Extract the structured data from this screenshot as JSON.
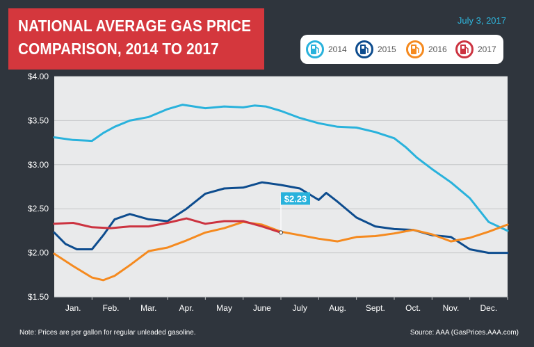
{
  "title": {
    "line1": "NATIONAL AVERAGE GAS PRICE",
    "line2": "COMPARISON, 2014 TO 2017"
  },
  "date": "July 3, 2017",
  "legend": [
    {
      "label": "2014",
      "color": "#29b2dc",
      "icon": "gas-pump-icon"
    },
    {
      "label": "2015",
      "color": "#0d4c8e",
      "icon": "gas-pump-icon"
    },
    {
      "label": "2016",
      "color": "#f58a1f",
      "icon": "gas-pump-icon"
    },
    {
      "label": "2017",
      "color": "#cc3340",
      "icon": "gas-pump-icon"
    }
  ],
  "footer": {
    "note": "Note: Prices are per gallon for regular unleaded gasoline.",
    "source": "Source: AAA (GasPrices.AAA.com)"
  },
  "chart_data": {
    "type": "line",
    "y_ticks": [
      "$4.00",
      "$3.50",
      "$3.00",
      "$2.50",
      "$2.00",
      "$1.50"
    ],
    "ylim": [
      1.5,
      4.0
    ],
    "xlim": [
      0,
      12
    ],
    "categories": [
      "Jan.",
      "Feb.",
      "Mar.",
      "Apr.",
      "May",
      "June",
      "July",
      "Aug.",
      "Sept.",
      "Oct.",
      "Nov.",
      "Dec."
    ],
    "grid": "horizontal",
    "annotation": {
      "label": "$2.23",
      "x": 6.0,
      "y": 2.23
    },
    "series": [
      {
        "name": "2014",
        "color": "#29b2dc",
        "x": [
          0,
          0.5,
          1.0,
          1.3,
          1.6,
          2.0,
          2.5,
          3.0,
          3.4,
          4.0,
          4.5,
          5.0,
          5.3,
          5.6,
          6.0,
          6.5,
          7.0,
          7.5,
          8.0,
          8.5,
          9.0,
          9.3,
          9.6,
          10.0,
          10.5,
          11.0,
          11.5,
          12.0
        ],
        "y": [
          3.31,
          3.28,
          3.27,
          3.36,
          3.43,
          3.5,
          3.54,
          3.63,
          3.68,
          3.64,
          3.66,
          3.65,
          3.67,
          3.66,
          3.61,
          3.53,
          3.47,
          3.43,
          3.42,
          3.37,
          3.3,
          3.2,
          3.08,
          2.95,
          2.8,
          2.62,
          2.35,
          2.25
        ]
      },
      {
        "name": "2015",
        "color": "#0d4c8e",
        "x": [
          0,
          0.3,
          0.6,
          1.0,
          1.3,
          1.6,
          2.0,
          2.5,
          3.0,
          3.5,
          4.0,
          4.5,
          5.0,
          5.5,
          6.0,
          6.5,
          7.0,
          7.2,
          7.5,
          8.0,
          8.5,
          9.0,
          9.5,
          10.0,
          10.5,
          11.0,
          11.5,
          12.0
        ],
        "y": [
          2.23,
          2.1,
          2.04,
          2.04,
          2.2,
          2.38,
          2.44,
          2.38,
          2.36,
          2.5,
          2.67,
          2.73,
          2.74,
          2.8,
          2.77,
          2.73,
          2.6,
          2.68,
          2.58,
          2.4,
          2.3,
          2.27,
          2.26,
          2.2,
          2.18,
          2.04,
          2.0,
          2.0
        ]
      },
      {
        "name": "2016",
        "color": "#f58a1f",
        "x": [
          0,
          0.5,
          1.0,
          1.3,
          1.6,
          2.0,
          2.5,
          3.0,
          3.5,
          4.0,
          4.5,
          5.0,
          5.5,
          6.0,
          6.5,
          7.0,
          7.5,
          8.0,
          8.5,
          9.0,
          9.5,
          10.0,
          10.5,
          11.0,
          11.5,
          12.0
        ],
        "y": [
          1.99,
          1.85,
          1.72,
          1.69,
          1.74,
          1.86,
          2.02,
          2.06,
          2.14,
          2.23,
          2.28,
          2.35,
          2.32,
          2.24,
          2.2,
          2.16,
          2.13,
          2.18,
          2.19,
          2.22,
          2.26,
          2.21,
          2.13,
          2.17,
          2.24,
          2.32
        ]
      },
      {
        "name": "2017",
        "color": "#cc3340",
        "x": [
          0,
          0.5,
          1.0,
          1.5,
          2.0,
          2.5,
          3.0,
          3.5,
          4.0,
          4.5,
          5.0,
          5.5,
          6.0
        ],
        "y": [
          2.33,
          2.34,
          2.29,
          2.28,
          2.3,
          2.3,
          2.34,
          2.39,
          2.33,
          2.36,
          2.36,
          2.3,
          2.23
        ]
      }
    ]
  }
}
